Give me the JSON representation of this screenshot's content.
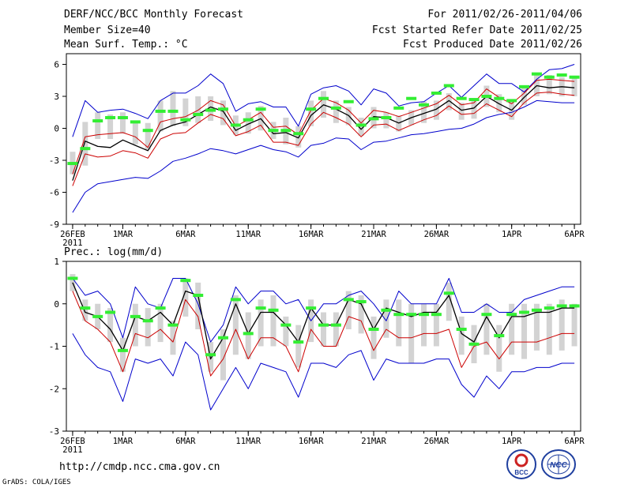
{
  "header": {
    "left": [
      "DERF/NCC/BCC Monthly Forecast",
      "Member Size=40",
      "Mean Surf. Temp.: °C"
    ],
    "right": [
      "For 2011/02/26-2011/04/06",
      "Fcst Started Refer Date 2011/02/25",
      "Fcst Produced Date 2011/02/26"
    ]
  },
  "footer": {
    "url": "http://cmdp.ncc.cma.gov.cn",
    "credit": "GrADS: COLA/IGES",
    "logo_left_text": "BCC",
    "logo_right_text": "NCC"
  },
  "colors": {
    "envelope": "#0000cc",
    "spread": "#cc0000",
    "mean": "#000000",
    "box": "#d3d3d3",
    "marker": "#33ee33",
    "axis": "#000000"
  },
  "chart_data": [
    {
      "id": "temperature",
      "type": "line",
      "title": "Mean Surf. Temp.: °C",
      "x_start": 0,
      "x_end": 39,
      "xlim": [
        -0.5,
        40.5
      ],
      "ylim": [
        -9,
        7
      ],
      "yticks": [
        6,
        3,
        0,
        -3,
        -6,
        -9
      ],
      "xticks": [
        {
          "day": 0,
          "label": "26FEB",
          "sub": "2011"
        },
        {
          "day": 4,
          "label": "1MAR"
        },
        {
          "day": 9,
          "label": "6MAR"
        },
        {
          "day": 14,
          "label": "11MAR"
        },
        {
          "day": 19,
          "label": "16MAR"
        },
        {
          "day": 24,
          "label": "21MAR"
        },
        {
          "day": 29,
          "label": "26MAR"
        },
        {
          "day": 35,
          "label": "1APR"
        },
        {
          "day": 40,
          "label": "6APR"
        }
      ],
      "series": [
        {
          "name": "upper-envelope",
          "style": "envelope",
          "values": [
            -0.8,
            2.6,
            1.5,
            1.7,
            1.8,
            1.4,
            0.9,
            2.6,
            3.3,
            3.3,
            4.0,
            5.1,
            4.2,
            1.6,
            2.3,
            2.5,
            2.0,
            2.0,
            0.2,
            3.2,
            3.8,
            4.0,
            3.5,
            2.2,
            3.7,
            3.3,
            2.1,
            2.4,
            2.5,
            3.3,
            4.0,
            2.9,
            4.0,
            5.1,
            4.2,
            4.2,
            3.4,
            4.6,
            5.5,
            5.6,
            6.0
          ]
        },
        {
          "name": "upper-spread",
          "style": "spread",
          "values": [
            -4.3,
            -0.8,
            -0.6,
            -0.5,
            -0.4,
            -0.8,
            -1.8,
            0.6,
            0.9,
            1.1,
            1.7,
            2.6,
            2.2,
            0.2,
            0.8,
            1.5,
            0.1,
            0.2,
            -0.6,
            1.7,
            2.8,
            2.4,
            1.7,
            0.5,
            1.7,
            1.5,
            1.1,
            1.5,
            1.9,
            2.3,
            3.1,
            2.2,
            2.4,
            3.7,
            2.9,
            2.3,
            3.3,
            4.5,
            4.6,
            4.5,
            4.4
          ]
        },
        {
          "name": "ensemble-mean",
          "style": "mean",
          "values": [
            -4.9,
            -1.2,
            -1.7,
            -1.8,
            -1.1,
            -1.6,
            -2.1,
            -0.2,
            0.3,
            0.6,
            1.3,
            2.0,
            1.6,
            -0.2,
            0.4,
            0.9,
            -0.5,
            -0.4,
            -0.9,
            1.2,
            2.2,
            1.8,
            1.2,
            -0.1,
            1.1,
            1.0,
            0.5,
            1.0,
            1.4,
            1.8,
            2.6,
            1.7,
            1.9,
            3.0,
            2.3,
            1.7,
            2.9,
            4.0,
            3.8,
            3.9,
            3.8
          ]
        },
        {
          "name": "lower-spread",
          "style": "spread",
          "values": [
            -5.4,
            -2.4,
            -2.7,
            -2.6,
            -2.1,
            -2.3,
            -2.8,
            -1.0,
            -0.5,
            -0.4,
            0.5,
            1.3,
            0.9,
            -0.7,
            -0.3,
            0.3,
            -1.3,
            -1.3,
            -1.6,
            0.4,
            1.5,
            1.0,
            0.4,
            -0.8,
            0.3,
            0.4,
            -0.2,
            0.3,
            0.8,
            1.2,
            2.1,
            1.3,
            1.4,
            2.3,
            1.7,
            1.1,
            2.4,
            3.3,
            3.4,
            3.2,
            3.1
          ]
        },
        {
          "name": "lower-envelope",
          "style": "envelope",
          "values": [
            -7.9,
            -6.0,
            -5.2,
            -5.0,
            -4.8,
            -4.6,
            -4.7,
            -4.0,
            -3.1,
            -2.8,
            -2.4,
            -1.9,
            -2.1,
            -2.4,
            -2.0,
            -1.6,
            -2.0,
            -2.2,
            -2.7,
            -1.6,
            -1.4,
            -0.9,
            -1.0,
            -2.0,
            -1.3,
            -1.2,
            -0.9,
            -0.6,
            -0.5,
            -0.3,
            -0.1,
            0.0,
            0.4,
            1.0,
            1.3,
            1.5,
            2.0,
            2.6,
            2.5,
            2.4,
            2.4
          ]
        }
      ],
      "boxes": [
        {
          "lo": -4.3,
          "hi": -2.2
        },
        {
          "lo": -3.5,
          "hi": 0.6
        },
        {
          "lo": -1.0,
          "hi": 1.5
        },
        {
          "lo": -1.0,
          "hi": 1.3
        },
        {
          "lo": -0.5,
          "hi": 1.5
        },
        {
          "lo": -1.5,
          "hi": 0.5
        },
        {
          "lo": -2.0,
          "hi": 0.5
        },
        {
          "lo": -0.3,
          "hi": 2.6
        },
        {
          "lo": 0.2,
          "hi": 3.5
        },
        {
          "lo": 0.2,
          "hi": 2.8
        },
        {
          "lo": 0.5,
          "hi": 3.0
        },
        {
          "lo": 0.7,
          "hi": 3.0
        },
        {
          "lo": 0.3,
          "hi": 2.6
        },
        {
          "lo": -0.6,
          "hi": 1.2
        },
        {
          "lo": -0.5,
          "hi": 1.5
        },
        {
          "lo": -0.2,
          "hi": 2.1
        },
        {
          "lo": -1.0,
          "hi": 0.6
        },
        {
          "lo": -1.5,
          "hi": 1.0
        },
        {
          "lo": -1.8,
          "hi": 0.2
        },
        {
          "lo": 0.2,
          "hi": 2.6
        },
        {
          "lo": 1.0,
          "hi": 3.5
        },
        {
          "lo": 0.5,
          "hi": 2.6
        },
        {
          "lo": 0.3,
          "hi": 2.0
        },
        {
          "lo": -0.7,
          "hi": 1.0
        },
        {
          "lo": 0.0,
          "hi": 2.0
        },
        {
          "lo": 0.0,
          "hi": 1.5
        },
        {
          "lo": -0.3,
          "hi": 1.2
        },
        {
          "lo": 0.3,
          "hi": 1.7
        },
        {
          "lo": 0.5,
          "hi": 2.5
        },
        {
          "lo": 0.8,
          "hi": 2.6
        },
        {
          "lo": 1.7,
          "hi": 3.3
        },
        {
          "lo": 0.8,
          "hi": 2.4
        },
        {
          "lo": 0.9,
          "hi": 2.8
        },
        {
          "lo": 2.0,
          "hi": 4.0
        },
        {
          "lo": 1.5,
          "hi": 3.2
        },
        {
          "lo": 0.8,
          "hi": 2.5
        },
        {
          "lo": 2.2,
          "hi": 3.8
        },
        {
          "lo": 3.0,
          "hi": 5.0
        },
        {
          "lo": 3.2,
          "hi": 5.0
        },
        {
          "lo": 3.0,
          "hi": 4.8
        },
        {
          "lo": 3.0,
          "hi": 4.7
        }
      ],
      "markers": [
        -3.3,
        -1.9,
        0.7,
        1.0,
        1.0,
        0.6,
        -0.2,
        1.6,
        1.6,
        0.8,
        1.3,
        1.7,
        1.8,
        0.3,
        0.8,
        1.8,
        -0.2,
        -0.2,
        -0.5,
        1.8,
        2.8,
        1.9,
        2.5,
        0.3,
        0.9,
        1.0,
        1.9,
        2.8,
        2.2,
        3.3,
        4.0,
        2.8,
        2.7,
        3.0,
        2.8,
        2.6,
        3.9,
        5.1,
        4.8,
        5.0,
        4.8
      ]
    },
    {
      "id": "precipitation",
      "type": "line",
      "title": "Prec.: log(mm/d)",
      "x_start": 0,
      "x_end": 39,
      "xlim": [
        -0.5,
        40.5
      ],
      "ylim": [
        -3,
        1
      ],
      "yticks": [
        1,
        0,
        -1,
        -2,
        -3
      ],
      "xticks": [
        {
          "day": 0,
          "label": "26FEB",
          "sub": "2011"
        },
        {
          "day": 4,
          "label": "1MAR"
        },
        {
          "day": 9,
          "label": "6MAR"
        },
        {
          "day": 14,
          "label": "11MAR"
        },
        {
          "day": 19,
          "label": "16MAR"
        },
        {
          "day": 24,
          "label": "21MAR"
        },
        {
          "day": 29,
          "label": "26MAR"
        },
        {
          "day": 35,
          "label": "1APR"
        },
        {
          "day": 40,
          "label": "6APR"
        }
      ],
      "series": [
        {
          "name": "upper-envelope",
          "style": "envelope",
          "values": [
            0.6,
            0.2,
            0.3,
            0.0,
            -0.8,
            0.4,
            0.0,
            -0.1,
            0.6,
            0.6,
            0.0,
            -0.9,
            -0.5,
            0.4,
            0.0,
            0.3,
            0.3,
            0.0,
            0.1,
            -0.4,
            0.0,
            0.0,
            0.2,
            0.3,
            0.0,
            -0.4,
            0.3,
            0.0,
            0.0,
            0.0,
            0.6,
            -0.2,
            -0.2,
            0.0,
            -0.2,
            -0.2,
            0.1,
            0.2,
            0.3,
            0.4,
            0.4
          ]
        },
        {
          "name": "ensemble-mean",
          "style": "mean",
          "values": [
            0.5,
            -0.2,
            -0.3,
            -0.6,
            -1.1,
            -0.3,
            -0.4,
            -0.2,
            -0.5,
            0.3,
            0.2,
            -1.3,
            -0.8,
            0.0,
            -0.7,
            -0.2,
            -0.2,
            -0.5,
            -0.9,
            -0.1,
            -0.5,
            -0.5,
            0.1,
            0.0,
            -0.6,
            -0.1,
            -0.2,
            -0.3,
            -0.2,
            -0.2,
            0.2,
            -0.7,
            -0.9,
            -0.3,
            -0.8,
            -0.3,
            -0.3,
            -0.2,
            -0.2,
            -0.1,
            -0.1
          ]
        },
        {
          "name": "lower-spread",
          "style": "spread",
          "values": [
            0.3,
            -0.4,
            -0.6,
            -0.9,
            -1.6,
            -0.7,
            -0.8,
            -0.6,
            -0.9,
            0.1,
            -0.3,
            -1.7,
            -1.3,
            -0.6,
            -1.3,
            -0.8,
            -0.8,
            -1.0,
            -1.6,
            -0.6,
            -1.0,
            -1.0,
            -0.3,
            -0.4,
            -1.1,
            -0.6,
            -0.8,
            -0.8,
            -0.7,
            -0.7,
            -0.6,
            -1.5,
            -1.0,
            -0.9,
            -1.3,
            -0.9,
            -0.9,
            -0.9,
            -0.8,
            -0.7,
            -0.7
          ]
        },
        {
          "name": "lower-envelope",
          "style": "envelope",
          "values": [
            -0.7,
            -1.2,
            -1.5,
            -1.6,
            -2.3,
            -1.3,
            -1.4,
            -1.3,
            -1.7,
            -0.9,
            -1.2,
            -2.5,
            -2.0,
            -1.5,
            -2.0,
            -1.4,
            -1.5,
            -1.6,
            -2.2,
            -1.4,
            -1.4,
            -1.5,
            -1.2,
            -1.1,
            -1.8,
            -1.3,
            -1.4,
            -1.4,
            -1.4,
            -1.3,
            -1.3,
            -1.9,
            -2.2,
            -1.7,
            -2.0,
            -1.6,
            -1.6,
            -1.5,
            -1.5,
            -1.4,
            -1.4
          ]
        }
      ],
      "boxes": [
        {
          "lo": 0.3,
          "hi": 0.7
        },
        {
          "lo": -0.4,
          "hi": 0.1
        },
        {
          "lo": -0.6,
          "hi": 0.0
        },
        {
          "lo": -0.9,
          "hi": -0.1
        },
        {
          "lo": -1.6,
          "hi": -0.8
        },
        {
          "lo": -1.0,
          "hi": 0.0
        },
        {
          "lo": -1.0,
          "hi": -0.1
        },
        {
          "lo": -0.9,
          "hi": 0.0
        },
        {
          "lo": -1.2,
          "hi": -0.4
        },
        {
          "lo": -0.3,
          "hi": 0.6
        },
        {
          "lo": -0.6,
          "hi": 0.5
        },
        {
          "lo": -1.6,
          "hi": -0.9
        },
        {
          "lo": -1.8,
          "hi": -0.6
        },
        {
          "lo": -1.2,
          "hi": 0.2
        },
        {
          "lo": -1.3,
          "hi": -0.2
        },
        {
          "lo": -1.0,
          "hi": 0.1
        },
        {
          "lo": -1.0,
          "hi": 0.2
        },
        {
          "lo": -1.0,
          "hi": -0.3
        },
        {
          "lo": -1.5,
          "hi": -0.5
        },
        {
          "lo": -0.9,
          "hi": 0.1
        },
        {
          "lo": -1.0,
          "hi": -0.2
        },
        {
          "lo": -1.0,
          "hi": -0.2
        },
        {
          "lo": -0.6,
          "hi": 0.3
        },
        {
          "lo": -0.7,
          "hi": 0.2
        },
        {
          "lo": -1.3,
          "hi": -0.3
        },
        {
          "lo": -0.8,
          "hi": 0.1
        },
        {
          "lo": -1.0,
          "hi": 0.1
        },
        {
          "lo": -1.4,
          "hi": 0.0
        },
        {
          "lo": -1.0,
          "hi": 0.0
        },
        {
          "lo": -1.0,
          "hi": 0.0
        },
        {
          "lo": -0.4,
          "hi": 0.5
        },
        {
          "lo": -1.2,
          "hi": -0.3
        },
        {
          "lo": -1.4,
          "hi": -0.5
        },
        {
          "lo": -1.2,
          "hi": 0.0
        },
        {
          "lo": -1.6,
          "hi": -0.5
        },
        {
          "lo": -1.2,
          "hi": 0.0
        },
        {
          "lo": -1.3,
          "hi": 0.0
        },
        {
          "lo": -1.1,
          "hi": 0.0
        },
        {
          "lo": -1.2,
          "hi": 0.0
        },
        {
          "lo": -1.1,
          "hi": 0.1
        },
        {
          "lo": -1.0,
          "hi": 0.0
        }
      ],
      "markers": [
        0.6,
        -0.1,
        -0.3,
        -0.2,
        -1.1,
        -0.3,
        -0.4,
        -0.1,
        -0.5,
        0.55,
        0.2,
        -1.2,
        -0.8,
        0.1,
        -0.7,
        -0.1,
        -0.15,
        -0.5,
        -0.9,
        -0.1,
        -0.5,
        -0.5,
        0.1,
        0.05,
        -0.6,
        -0.15,
        -0.25,
        -0.25,
        -0.25,
        -0.25,
        0.25,
        -0.6,
        -0.95,
        -0.25,
        -0.75,
        -0.25,
        -0.2,
        -0.15,
        -0.1,
        -0.05,
        -0.05
      ]
    }
  ]
}
